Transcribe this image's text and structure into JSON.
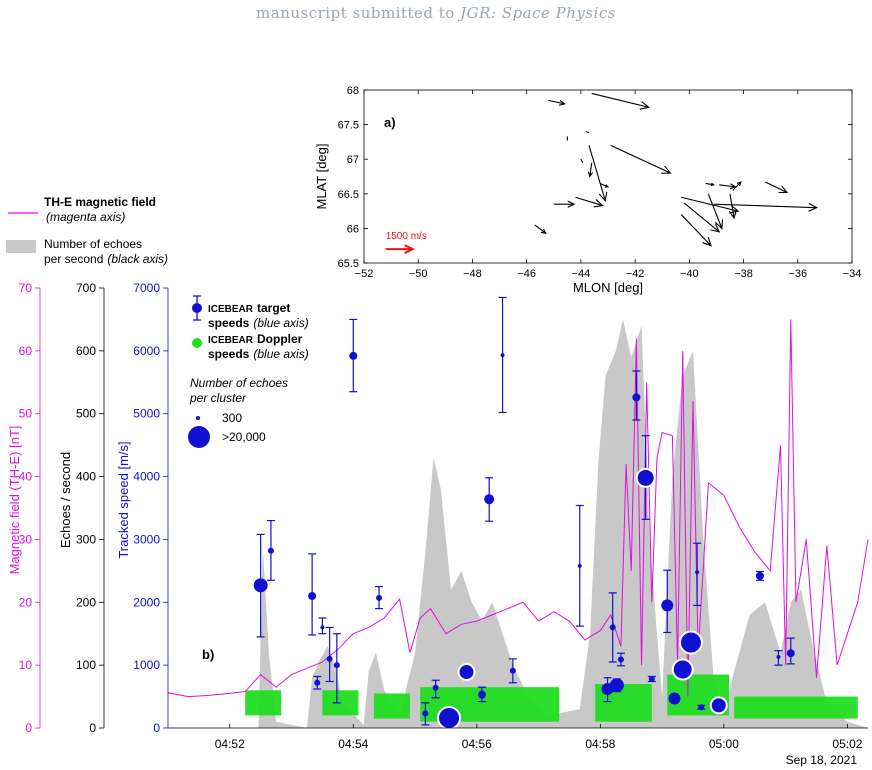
{
  "header": {
    "prefix": "manuscript submitted to ",
    "journal": "JGR: Space Physics"
  },
  "colors": {
    "magenta": "#e010e0",
    "blue": "#1010d0",
    "green": "#22dd22",
    "gray": "#c8c8c8",
    "arrow": "#000000",
    "scale_arrow": "#ee1111"
  },
  "chart_data": [
    {
      "type": "quiver",
      "panel_label": "a)",
      "xlabel": "MLON [deg]",
      "ylabel": "MLAT [deg]",
      "xlim": [
        -52,
        -34
      ],
      "ylim": [
        65.5,
        68
      ],
      "xticks": [
        -52,
        -50,
        -48,
        -46,
        -44,
        -42,
        -40,
        -38,
        -36,
        -34
      ],
      "yticks": [
        65.5,
        66,
        66.5,
        67,
        67.5,
        68
      ],
      "scale_label": "1500 m/s",
      "scale_vector": {
        "x": -51.2,
        "y": 65.7,
        "dx": 1.0,
        "dy": 0
      },
      "vectors": [
        {
          "x": -45.2,
          "y": 67.85,
          "dx": 0.6,
          "dy": -0.05
        },
        {
          "x": -43.6,
          "y": 67.95,
          "dx": 2.1,
          "dy": -0.2
        },
        {
          "x": -44.5,
          "y": 67.33,
          "dx": 0.0,
          "dy": -0.06
        },
        {
          "x": -43.8,
          "y": 67.4,
          "dx": 0.1,
          "dy": -0.02
        },
        {
          "x": -43.7,
          "y": 67.2,
          "dx": 0.6,
          "dy": -0.8
        },
        {
          "x": -44.0,
          "y": 67.0,
          "dx": 0.07,
          "dy": -0.05
        },
        {
          "x": -43.6,
          "y": 66.95,
          "dx": -0.07,
          "dy": -0.2
        },
        {
          "x": -42.9,
          "y": 67.2,
          "dx": 2.2,
          "dy": -0.4
        },
        {
          "x": -43.3,
          "y": 66.65,
          "dx": 0.3,
          "dy": -0.05
        },
        {
          "x": -45.0,
          "y": 66.35,
          "dx": 0.75,
          "dy": 0.0
        },
        {
          "x": -44.2,
          "y": 66.45,
          "dx": 1.0,
          "dy": -0.12
        },
        {
          "x": -45.7,
          "y": 66.05,
          "dx": 0.4,
          "dy": -0.12
        },
        {
          "x": -39.4,
          "y": 66.65,
          "dx": 0.3,
          "dy": -0.02
        },
        {
          "x": -38.9,
          "y": 66.63,
          "dx": 0.6,
          "dy": -0.03
        },
        {
          "x": -37.2,
          "y": 66.67,
          "dx": 0.8,
          "dy": -0.15
        },
        {
          "x": -38.4,
          "y": 66.55,
          "dx": 0.3,
          "dy": 0.12
        },
        {
          "x": -40.3,
          "y": 66.45,
          "dx": 2.1,
          "dy": -0.2
        },
        {
          "x": -40.2,
          "y": 66.37,
          "dx": 1.3,
          "dy": -0.42
        },
        {
          "x": -39.3,
          "y": 66.5,
          "dx": 0.5,
          "dy": -0.5
        },
        {
          "x": -38.5,
          "y": 66.5,
          "dx": 0.15,
          "dy": -0.35
        },
        {
          "x": -40.3,
          "y": 66.2,
          "dx": 1.1,
          "dy": -0.45
        },
        {
          "x": -39.1,
          "y": 66.35,
          "dx": 3.8,
          "dy": -0.05
        }
      ]
    },
    {
      "type": "timeseries",
      "panel_label": "b)",
      "date_label": "Sep 18, 2021",
      "xlim": [
        "04:51:00",
        "05:02:20"
      ],
      "xticks": [
        "04:52",
        "04:54",
        "04:56",
        "04:58",
        "05:00",
        "05:02"
      ],
      "magnetic_axis": {
        "label": "Magnetic field (TH-E) [nT]",
        "ylim": [
          0,
          70
        ],
        "ticks": [
          0,
          10,
          20,
          30,
          40,
          50,
          60,
          70
        ]
      },
      "echo_axis": {
        "label": "Echoes / second",
        "ylim": [
          0,
          700
        ],
        "ticks": [
          0,
          100,
          200,
          300,
          400,
          500,
          600,
          700
        ]
      },
      "speed_axis": {
        "label": "Tracked speed [m/s]",
        "ylim": [
          0,
          7000
        ],
        "ticks": [
          0,
          1000,
          2000,
          3000,
          4000,
          5000,
          6000,
          7000
        ]
      },
      "legend": {
        "magnetic": "TH-E magnetic field",
        "magnetic_note": "(magenta axis)",
        "echoes_line1": "Number of echoes",
        "echoes_line2": "per second",
        "echoes_note": "(black axis)",
        "target_line1_sc": "ICEBEAR",
        "target_line1_rest": "target",
        "target_line2": "speeds",
        "target_note": "(blue axis)",
        "doppler_line1_sc": "ICEBEAR",
        "doppler_line1_rest": "Doppler",
        "doppler_line2": "speeds",
        "doppler_note": "(blue axis)",
        "size_title_line1": "Number of  echoes",
        "size_title_line2": "per cluster",
        "size_small": "300",
        "size_large": ">20,000"
      },
      "magnetic_field_nT": [
        [
          "04:51:00",
          5.6
        ],
        [
          "04:51:20",
          5.0
        ],
        [
          "04:51:40",
          5.2
        ],
        [
          "04:52:00",
          5.5
        ],
        [
          "04:52:15",
          5.8
        ],
        [
          "04:52:30",
          8.5
        ],
        [
          "04:52:45",
          6.5
        ],
        [
          "04:53:00",
          8.5
        ],
        [
          "04:53:15",
          9.5
        ],
        [
          "04:53:30",
          10.5
        ],
        [
          "04:53:45",
          12.5
        ],
        [
          "04:54:00",
          15.0
        ],
        [
          "04:54:15",
          16.0
        ],
        [
          "04:54:30",
          17.5
        ],
        [
          "04:54:45",
          20.5
        ],
        [
          "04:54:55",
          12.0
        ],
        [
          "04:55:05",
          17.5
        ],
        [
          "04:55:15",
          19.0
        ],
        [
          "04:55:30",
          15.0
        ],
        [
          "04:55:45",
          16.5
        ],
        [
          "04:56:00",
          17.0
        ],
        [
          "04:56:15",
          18.0
        ],
        [
          "04:56:30",
          19.0
        ],
        [
          "04:56:45",
          20.0
        ],
        [
          "04:57:00",
          17.0
        ],
        [
          "04:57:15",
          18.5
        ],
        [
          "04:57:30",
          17.0
        ],
        [
          "04:57:45",
          14.0
        ],
        [
          "04:58:00",
          15.5
        ],
        [
          "04:58:10",
          18.0
        ],
        [
          "04:58:20",
          13.0
        ],
        [
          "04:58:25",
          42.0
        ],
        [
          "04:58:30",
          25.0
        ],
        [
          "04:58:35",
          62.0
        ],
        [
          "04:58:40",
          10.0
        ],
        [
          "04:58:45",
          55.0
        ],
        [
          "04:58:50",
          20.0
        ],
        [
          "04:58:55",
          43.0
        ],
        [
          "04:59:00",
          47.0
        ],
        [
          "04:59:10",
          46.5
        ],
        [
          "04:59:15",
          10.0
        ],
        [
          "04:59:20",
          60.0
        ],
        [
          "04:59:25",
          5.0
        ],
        [
          "04:59:30",
          52.0
        ],
        [
          "04:59:35",
          12.0
        ],
        [
          "04:59:45",
          39.0
        ],
        [
          "05:00:00",
          37.0
        ],
        [
          "05:00:15",
          32.0
        ],
        [
          "05:00:30",
          28.0
        ],
        [
          "05:00:45",
          25.0
        ],
        [
          "05:00:55",
          45.0
        ],
        [
          "05:01:00",
          10.0
        ],
        [
          "05:01:05",
          65.0
        ],
        [
          "05:01:10",
          20.0
        ],
        [
          "05:01:20",
          30.0
        ],
        [
          "05:01:30",
          8.0
        ],
        [
          "05:01:40",
          29.0
        ],
        [
          "05:01:50",
          10.0
        ],
        [
          "05:02:00",
          15.0
        ],
        [
          "05:02:10",
          20.0
        ],
        [
          "05:02:20",
          30.0
        ]
      ],
      "echoes_per_second": [
        [
          "04:51:00",
          0
        ],
        [
          "04:52:28",
          0
        ],
        [
          "04:52:32",
          290
        ],
        [
          "04:52:38",
          120
        ],
        [
          "04:52:45",
          10
        ],
        [
          "04:53:15",
          0
        ],
        [
          "04:53:20",
          80
        ],
        [
          "04:53:28",
          110
        ],
        [
          "04:53:35",
          130
        ],
        [
          "04:53:42",
          100
        ],
        [
          "04:53:50",
          40
        ],
        [
          "04:54:10",
          5
        ],
        [
          "04:54:15",
          90
        ],
        [
          "04:54:22",
          120
        ],
        [
          "04:54:30",
          60
        ],
        [
          "04:54:45",
          20
        ],
        [
          "04:55:00",
          120
        ],
        [
          "04:55:10",
          280
        ],
        [
          "04:55:18",
          430
        ],
        [
          "04:55:25",
          380
        ],
        [
          "04:55:35",
          220
        ],
        [
          "04:55:45",
          250
        ],
        [
          "04:55:55",
          200
        ],
        [
          "04:56:05",
          170
        ],
        [
          "04:56:15",
          200
        ],
        [
          "04:56:25",
          150
        ],
        [
          "04:56:35",
          100
        ],
        [
          "04:56:50",
          50
        ],
        [
          "04:57:10",
          20
        ],
        [
          "04:57:40",
          30
        ],
        [
          "04:57:50",
          150
        ],
        [
          "04:57:58",
          420
        ],
        [
          "04:58:05",
          560
        ],
        [
          "04:58:15",
          600
        ],
        [
          "04:58:22",
          650
        ],
        [
          "04:58:30",
          590
        ],
        [
          "04:58:40",
          640
        ],
        [
          "04:58:48",
          300
        ],
        [
          "04:58:55",
          150
        ],
        [
          "04:59:00",
          50
        ],
        [
          "04:59:10",
          400
        ],
        [
          "04:59:20",
          560
        ],
        [
          "04:59:30",
          600
        ],
        [
          "04:59:40",
          300
        ],
        [
          "04:59:50",
          80
        ],
        [
          "05:00:00",
          30
        ],
        [
          "05:00:10",
          90
        ],
        [
          "05:00:25",
          180
        ],
        [
          "05:00:40",
          200
        ],
        [
          "05:00:55",
          120
        ],
        [
          "05:01:05",
          200
        ],
        [
          "05:01:15",
          220
        ],
        [
          "05:01:25",
          140
        ],
        [
          "05:01:40",
          40
        ],
        [
          "05:02:00",
          10
        ],
        [
          "05:02:20",
          0
        ]
      ],
      "doppler_speed_bands": [
        [
          "04:52:15",
          "04:52:50",
          200,
          600
        ],
        [
          "04:53:30",
          "04:54:05",
          200,
          600
        ],
        [
          "04:54:20",
          "04:54:55",
          150,
          550
        ],
        [
          "04:55:05",
          "04:57:20",
          100,
          650
        ],
        [
          "04:57:55",
          "04:58:50",
          100,
          700
        ],
        [
          "04:59:05",
          "05:00:05",
          200,
          850
        ],
        [
          "05:00:10",
          "05:02:10",
          150,
          500
        ]
      ],
      "target_speeds": [
        {
          "t": "04:52:30",
          "v": 2270,
          "lo": 1450,
          "hi": 3080,
          "r": 7
        },
        {
          "t": "04:52:40",
          "v": 2820,
          "lo": 2350,
          "hi": 3300,
          "r": 3
        },
        {
          "t": "04:53:20",
          "v": 2100,
          "lo": 1480,
          "hi": 2770,
          "r": 4
        },
        {
          "t": "04:53:25",
          "v": 720,
          "lo": 620,
          "hi": 820,
          "r": 3
        },
        {
          "t": "04:53:30",
          "v": 1600,
          "lo": 1500,
          "hi": 1750,
          "r": 2
        },
        {
          "t": "04:53:37",
          "v": 1100,
          "lo": 740,
          "hi": 1600,
          "r": 3
        },
        {
          "t": "04:53:44",
          "v": 1000,
          "lo": 400,
          "hi": 1500,
          "r": 3
        },
        {
          "t": "04:54:00",
          "v": 5920,
          "lo": 5350,
          "hi": 6500,
          "r": 4
        },
        {
          "t": "04:54:25",
          "v": 2070,
          "lo": 1900,
          "hi": 2250,
          "r": 3
        },
        {
          "t": "04:55:10",
          "v": 230,
          "lo": 50,
          "hi": 400,
          "r": 3
        },
        {
          "t": "04:55:20",
          "v": 640,
          "lo": 480,
          "hi": 760,
          "r": 3
        },
        {
          "t": "04:55:33",
          "v": 160,
          "lo": 140,
          "hi": 180,
          "r": 11
        },
        {
          "t": "04:55:50",
          "v": 890,
          "lo": 870,
          "hi": 910,
          "r": 8
        },
        {
          "t": "04:56:05",
          "v": 530,
          "lo": 420,
          "hi": 650,
          "r": 4
        },
        {
          "t": "04:56:12",
          "v": 3640,
          "lo": 3290,
          "hi": 3980,
          "r": 5
        },
        {
          "t": "04:56:25",
          "v": 5930,
          "lo": 5020,
          "hi": 6850,
          "r": 2
        },
        {
          "t": "04:56:35",
          "v": 910,
          "lo": 720,
          "hi": 1100,
          "r": 3
        },
        {
          "t": "04:57:40",
          "v": 2580,
          "lo": 1620,
          "hi": 3540,
          "r": 2
        },
        {
          "t": "04:58:07",
          "v": 620,
          "lo": 420,
          "hi": 800,
          "r": 6
        },
        {
          "t": "04:58:12",
          "v": 1600,
          "lo": 1050,
          "hi": 2150,
          "r": 3
        },
        {
          "t": "04:58:16",
          "v": 680,
          "lo": 580,
          "hi": 780,
          "r": 7
        },
        {
          "t": "04:58:20",
          "v": 1090,
          "lo": 990,
          "hi": 1190,
          "r": 3
        },
        {
          "t": "04:58:35",
          "v": 5260,
          "lo": 4900,
          "hi": 5680,
          "r": 4
        },
        {
          "t": "04:58:44",
          "v": 3980,
          "lo": 3320,
          "hi": 4650,
          "r": 9
        },
        {
          "t": "04:58:50",
          "v": 780,
          "lo": 740,
          "hi": 820,
          "r": 3
        },
        {
          "t": "04:59:05",
          "v": 1950,
          "lo": 1520,
          "hi": 2510,
          "r": 6
        },
        {
          "t": "04:59:12",
          "v": 470,
          "lo": 420,
          "hi": 520,
          "r": 6
        },
        {
          "t": "04:59:20",
          "v": 930,
          "lo": 880,
          "hi": 980,
          "r": 10
        },
        {
          "t": "04:59:28",
          "v": 1360,
          "lo": 1250,
          "hi": 1470,
          "r": 11
        },
        {
          "t": "04:59:34",
          "v": 2480,
          "lo": 1950,
          "hi": 2940,
          "r": 2
        },
        {
          "t": "04:59:38",
          "v": 330,
          "lo": 300,
          "hi": 360,
          "r": 3
        },
        {
          "t": "04:59:55",
          "v": 360,
          "lo": 330,
          "hi": 390,
          "r": 8
        },
        {
          "t": "05:00:35",
          "v": 2420,
          "lo": 2350,
          "hi": 2490,
          "r": 4
        },
        {
          "t": "05:00:53",
          "v": 1130,
          "lo": 1000,
          "hi": 1230,
          "r": 2
        },
        {
          "t": "05:01:05",
          "v": 1190,
          "lo": 1020,
          "hi": 1430,
          "r": 4
        }
      ]
    }
  ]
}
